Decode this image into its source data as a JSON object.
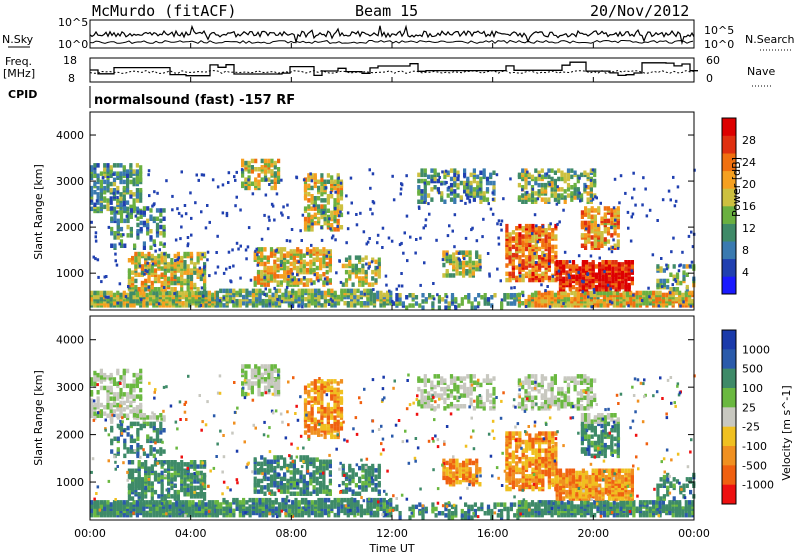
{
  "header": {
    "station": "McMurdo (fitACF)",
    "beam": "Beam 15",
    "date": "20/Nov/2012"
  },
  "top_panels": {
    "nsky_label": "N.Sky",
    "nsearch_label": "N.Search",
    "nsky_ticks": [
      "10^5",
      "10^0"
    ],
    "nsearch_ticks": [
      "10^5",
      "10^0"
    ],
    "freq_label_1": "Freq.",
    "freq_label_2": "[MHz]",
    "freq_ticks": [
      "18",
      "8"
    ],
    "nave_label": "Nave",
    "nave_ticks": [
      "60",
      "0"
    ],
    "cpid_label": "CPID",
    "cpid_value": "normalsound (fast) -157 RF"
  },
  "x_axis": {
    "title": "Time UT",
    "tick_labels": [
      "00:00",
      "04:00",
      "08:00",
      "12:00",
      "16:00",
      "20:00",
      "00:00"
    ]
  },
  "colors": {
    "power": [
      "#1a1aff",
      "#2040b0",
      "#3a7ab0",
      "#3f8a68",
      "#6ab040",
      "#ccc040",
      "#f5a020",
      "#f07010",
      "#e03010",
      "#dd0000"
    ],
    "velocity": [
      "#1a3aaa",
      "#2a5aaa",
      "#3e8a68",
      "#6ab840",
      "#c8c8c0",
      "#f0c020",
      "#f09020",
      "#f06010",
      "#ee1010"
    ]
  },
  "chart_data": [
    {
      "type": "heatmap",
      "title": "",
      "ylabel": "Slant Range [km]",
      "xlabel": "",
      "ylim": [
        200,
        4500
      ],
      "y_tick_labels": [
        "1000",
        "2000",
        "3000",
        "4000"
      ],
      "colorbar": {
        "title": "Power [dB]",
        "tick_labels": [
          "4",
          "8",
          "12",
          "16",
          "20",
          "24",
          "28"
        ]
      }
    },
    {
      "type": "heatmap",
      "title": "",
      "ylabel": "Slant Range [km]",
      "xlabel": "Time UT",
      "ylim": [
        200,
        4500
      ],
      "y_tick_labels": [
        "1000",
        "2000",
        "3000",
        "4000"
      ],
      "colorbar": {
        "title": "Velocity [m s^-1]",
        "tick_labels": [
          "1000",
          "500",
          "100",
          "25",
          "-25",
          "-100",
          "-500",
          "-1000"
        ]
      }
    }
  ]
}
